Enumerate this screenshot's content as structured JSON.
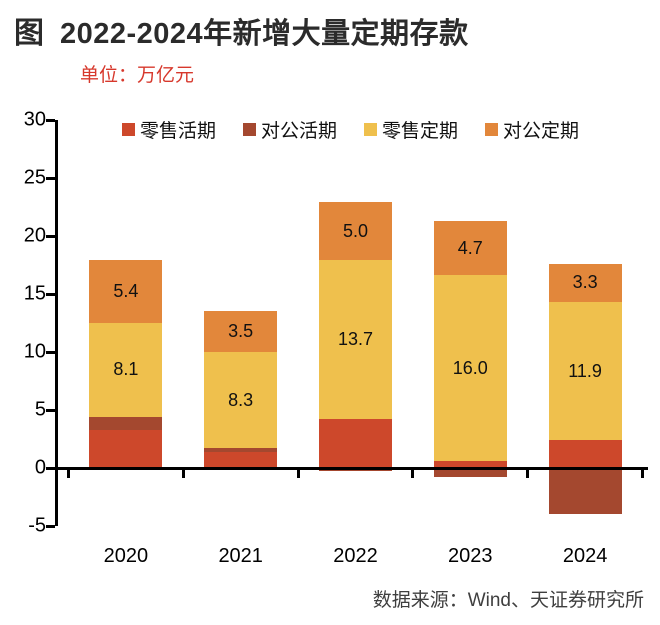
{
  "figure": {
    "tag": "图"
  },
  "chart_data": {
    "type": "bar",
    "stacked": true,
    "title": "2022-2024年新增大量定期存款",
    "unit_label": "单位：万亿元",
    "source": "数据来源：Wind、天证券研究所",
    "categories": [
      "2020",
      "2021",
      "2022",
      "2023",
      "2024"
    ],
    "series": [
      {
        "name": "零售活期",
        "color": "#cd482b",
        "values": [
          3.3,
          1.4,
          4.2,
          0.6,
          2.4
        ],
        "show_labels": false
      },
      {
        "name": "对公活期",
        "color": "#a4482f",
        "values": [
          1.1,
          0.3,
          -0.3,
          -0.8,
          -4.0
        ],
        "show_labels": false
      },
      {
        "name": "零售定期",
        "color": "#efc04d",
        "values": [
          8.1,
          8.3,
          13.7,
          16.0,
          11.9
        ],
        "show_labels": true
      },
      {
        "name": "对公定期",
        "color": "#e2873b",
        "values": [
          5.4,
          3.5,
          5.0,
          4.7,
          3.3
        ],
        "show_labels": true
      }
    ],
    "data_labels": {
      "零售定期": [
        "8.1",
        "8.3",
        "13.7",
        "16.0",
        "11.9"
      ],
      "对公定期": [
        "5.4",
        "3.5",
        "5.0",
        "4.7",
        "3.3"
      ]
    },
    "ylim": [
      -5,
      30
    ],
    "yticks": [
      30,
      25,
      20,
      15,
      10,
      5,
      0,
      -5
    ],
    "legend_position": "top-inside",
    "grid": false,
    "colors": {
      "title_text": "#2b2b2b",
      "unit_text": "#d7382c",
      "axis": "#000000",
      "source_text": "#3f3f3f"
    }
  }
}
